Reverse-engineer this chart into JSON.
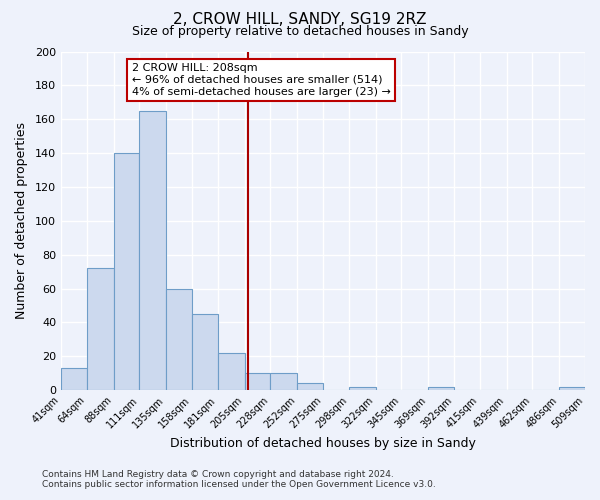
{
  "title": "2, CROW HILL, SANDY, SG19 2RZ",
  "subtitle": "Size of property relative to detached houses in Sandy",
  "xlabel": "Distribution of detached houses by size in Sandy",
  "ylabel": "Number of detached properties",
  "footer_line1": "Contains HM Land Registry data © Crown copyright and database right 2024.",
  "footer_line2": "Contains public sector information licensed under the Open Government Licence v3.0.",
  "bin_edges": [
    41,
    64,
    88,
    111,
    135,
    158,
    181,
    205,
    228,
    252,
    275,
    298,
    322,
    345,
    369,
    392,
    415,
    439,
    462,
    486,
    509
  ],
  "bin_counts": [
    13,
    72,
    140,
    165,
    60,
    45,
    22,
    10,
    10,
    4,
    0,
    2,
    0,
    0,
    2,
    0,
    0,
    0,
    0,
    2
  ],
  "bar_facecolor": "#ccd9ee",
  "bar_edgecolor": "#6e9dc8",
  "property_value": 208,
  "vline_color": "#aa0000",
  "annotation_title": "2 CROW HILL: 208sqm",
  "annotation_line1": "← 96% of detached houses are smaller (514)",
  "annotation_line2": "4% of semi-detached houses are larger (23) →",
  "annotation_box_edgecolor": "#bb0000",
  "annotation_box_facecolor": "#ffffff",
  "xlim_left": 41,
  "xlim_right": 509,
  "ylim_top": 200,
  "background_color": "#eef2fb",
  "grid_color": "#ffffff",
  "yticks": [
    0,
    20,
    40,
    60,
    80,
    100,
    120,
    140,
    160,
    180,
    200
  ]
}
